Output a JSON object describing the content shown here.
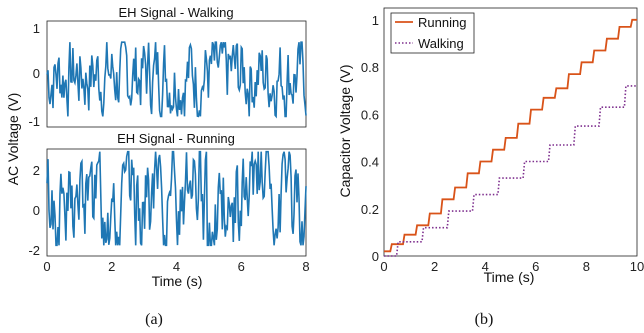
{
  "chart_data": [
    {
      "type": "line",
      "title": "EH Signal - Walking",
      "xlim": [
        0,
        8
      ],
      "ylim": [
        -1,
        1
      ],
      "yticks": [
        "1",
        "0",
        "-1"
      ],
      "xtick_labels": [],
      "amplitude_range": [
        -0.8,
        0.6
      ],
      "color": "#1f77b4",
      "series": [
        {
          "values": "fluctuating signal ~ ±0.6 V"
        }
      ]
    },
    {
      "type": "line",
      "title": "EH Signal - Running",
      "xlim": [
        0,
        8
      ],
      "ylim": [
        -2,
        2
      ],
      "yticks": [
        "2",
        "0",
        "-2"
      ],
      "xtick_labels": [
        "0",
        "2",
        "4",
        "6",
        "8"
      ],
      "xlabel": "Time (s)",
      "amplitude_range": [
        -1.6,
        1.9
      ],
      "color": "#1f77b4",
      "series": [
        {
          "values": "spiky fluctuating signal ~ ±1.8 V"
        }
      ]
    },
    {
      "type": "line",
      "xlabel": "Time (s)",
      "ylabel": "Capacitor Voltage (V)",
      "xlim": [
        0,
        10
      ],
      "ylim": [
        0,
        1.05
      ],
      "xtick_labels": [
        "0",
        "2",
        "4",
        "6",
        "8",
        "10"
      ],
      "ytick_labels": [
        "0",
        "0.2",
        "0.4",
        "0.6",
        "0.8",
        "1"
      ],
      "legend": "top-left",
      "series": [
        {
          "name": "Running",
          "color": "#d95319",
          "style": "solid",
          "x": [
            0,
            0.5,
            1,
            1.5,
            2,
            2.5,
            3,
            3.5,
            4,
            4.5,
            5,
            5.5,
            6,
            6.5,
            7,
            7.5,
            8,
            8.5,
            9,
            9.5,
            10
          ],
          "y": [
            0.02,
            0.05,
            0.09,
            0.13,
            0.18,
            0.24,
            0.29,
            0.35,
            0.4,
            0.45,
            0.5,
            0.56,
            0.62,
            0.67,
            0.71,
            0.77,
            0.82,
            0.87,
            0.92,
            0.97,
            1.0
          ]
        },
        {
          "name": "Walking",
          "color": "#7e2f8e",
          "style": "dotted",
          "x": [
            0,
            1,
            2,
            3,
            4,
            5,
            6,
            7,
            8,
            9,
            10
          ],
          "y": [
            0.0,
            0.06,
            0.12,
            0.19,
            0.26,
            0.33,
            0.4,
            0.47,
            0.55,
            0.63,
            0.72
          ]
        }
      ]
    }
  ],
  "captions": [
    "(a)",
    "(b)"
  ],
  "ylabel_left": "AC Voltage (V)"
}
